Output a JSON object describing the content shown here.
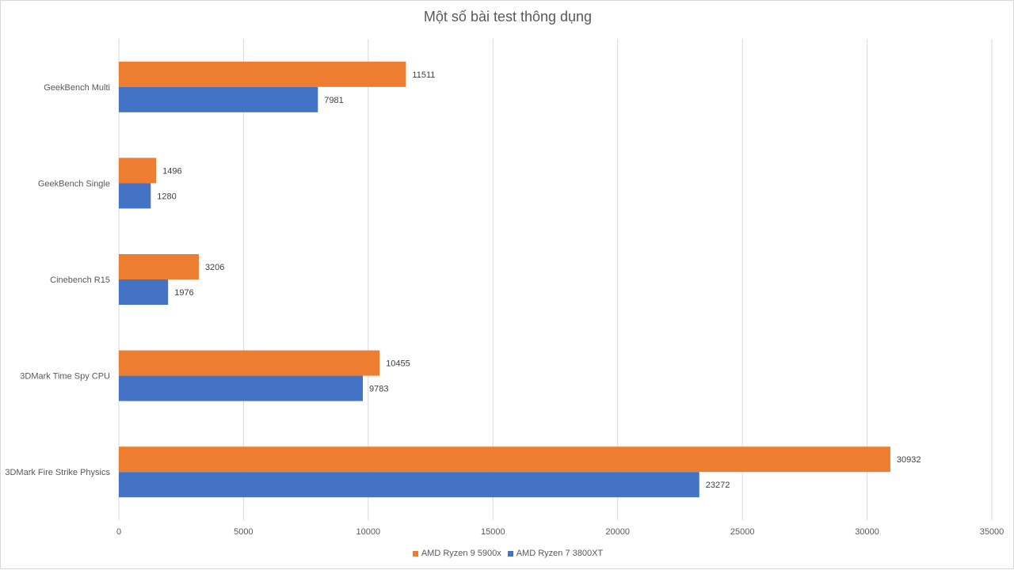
{
  "chart_data": {
    "type": "bar",
    "orientation": "horizontal",
    "title": "Một số bài test thông dụng",
    "categories": [
      "GeekBench Multi",
      "GeekBench Single",
      "Cinebench R15",
      "3DMark Time Spy CPU",
      "3DMark Fire Strike Physics"
    ],
    "series": [
      {
        "name": "AMD Ryzen 9 5900x",
        "color": "#ED7D31",
        "values": [
          11511,
          1496,
          3206,
          10455,
          30932
        ]
      },
      {
        "name": "AMD Ryzen 7 3800XT",
        "color": "#4472C4",
        "values": [
          7981,
          1280,
          1976,
          9783,
          23272
        ]
      }
    ],
    "xlim": [
      0,
      35000
    ],
    "xticks": [
      0,
      5000,
      10000,
      15000,
      20000,
      25000,
      30000,
      35000
    ],
    "grid": true,
    "legend_position": "bottom",
    "xlabel": "",
    "ylabel": ""
  }
}
